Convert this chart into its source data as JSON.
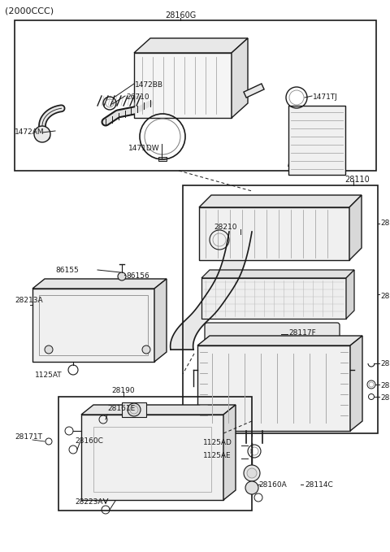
{
  "bg_color": "#ffffff",
  "line_color": "#1a1a1a",
  "fig_width": 4.8,
  "fig_height": 6.79,
  "dpi": 100,
  "title": "(2000CCC)",
  "top_box_label": "28160G",
  "middle_box_label": "28110",
  "bottom_box_label": "28190",
  "gray": "#888888",
  "lightgray": "#cccccc",
  "midgray": "#aaaaaa"
}
